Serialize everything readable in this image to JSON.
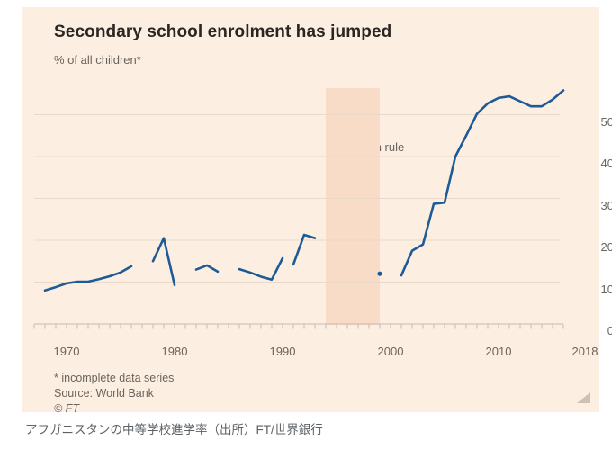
{
  "chart_data": {
    "type": "line",
    "title": "Secondary school enrolment has jumped",
    "subtitle": "% of all children*",
    "ylabel": "% of all children",
    "xlabel": "",
    "grid": true,
    "legend": "none",
    "x_tick_labels": [
      "1970",
      "1980",
      "1990",
      "2000",
      "2010",
      "2018"
    ],
    "x_tick_years": [
      1970,
      1980,
      1990,
      2000,
      2010,
      2018
    ],
    "y_ticks": [
      0,
      10,
      20,
      30,
      40,
      50
    ],
    "y_axis_side": "right",
    "x_range": [
      1969,
      2018
    ],
    "ylim": [
      0,
      57
    ],
    "annotation_band": {
      "label": "Taliban rule",
      "x_from": 1996,
      "x_to": 2001
    },
    "series": [
      {
        "name": "Secondary school enrolment (% of all children)",
        "note": "incomplete data series - drawn as disconnected segments",
        "segments": [
          {
            "start_year": 1970,
            "values": [
              8.0,
              8.8,
              9.7,
              10.1,
              10.1,
              10.7,
              11.4,
              12.3,
              13.8
            ]
          },
          {
            "start_year": 1980,
            "values": [
              15.0,
              20.5,
              9.3
            ]
          },
          {
            "start_year": 1984,
            "values": [
              13.0,
              14.0,
              12.5
            ]
          },
          {
            "start_year": 1988,
            "values": [
              13.1,
              12.3,
              11.3,
              10.6,
              15.7
            ]
          },
          {
            "start_year": 1993,
            "values": [
              14.2,
              21.3,
              20.5
            ]
          },
          {
            "start_year": 2003,
            "values": [
              11.6,
              17.5,
              19.0,
              28.7,
              29.0,
              40.0,
              45.0,
              50.2,
              52.7,
              54.0,
              54.4,
              53.2,
              52.0,
              52.0,
              53.6,
              55.8
            ]
          }
        ],
        "isolated_points": [
          {
            "year": 2001,
            "value": 12.0
          }
        ]
      }
    ]
  },
  "footer": {
    "note": "* incomplete data series",
    "source": "Source: World Bank",
    "copyright": "© FT"
  },
  "caption": {
    "text": "アフガニスタンの中等学校進学率（出所）FT/世界銀行"
  },
  "colors": {
    "card_background": "#fcefe2",
    "line": "#1e5b96",
    "band": "#f8dcc7",
    "grid": "#ead9c8",
    "axis": "#c9bbac",
    "corner_icon": "#cbc1b5",
    "title_text": "#2b2621",
    "muted_text": "#6b645d"
  }
}
